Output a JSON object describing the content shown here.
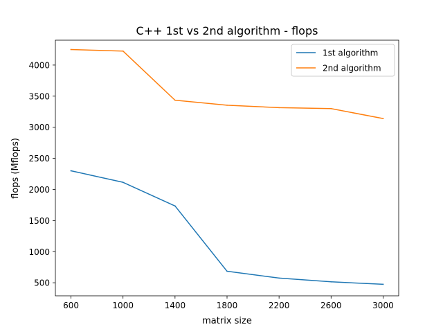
{
  "chart_data": {
    "type": "line",
    "title": "C++ 1st vs 2nd algorithm - flops",
    "xlabel": "matrix size",
    "ylabel": "flops (Mflops)",
    "x": [
      600,
      1000,
      1400,
      1800,
      2200,
      2600,
      3000
    ],
    "xticks": [
      600,
      1000,
      1400,
      1800,
      2200,
      2600,
      3000
    ],
    "yticks": [
      500,
      1000,
      1500,
      2000,
      2500,
      3000,
      3500,
      4000
    ],
    "xlim": [
      480,
      3120
    ],
    "ylim": [
      290,
      4400
    ],
    "grid": false,
    "legend_position": "top-right",
    "series": [
      {
        "name": "1st algorithm",
        "color": "#1f77b4",
        "values": [
          2300,
          2115,
          1735,
          685,
          575,
          515,
          475
        ]
      },
      {
        "name": "2nd algorithm",
        "color": "#ff7f0e",
        "values": [
          4250,
          4225,
          3435,
          3355,
          3315,
          3300,
          3140
        ]
      }
    ]
  }
}
